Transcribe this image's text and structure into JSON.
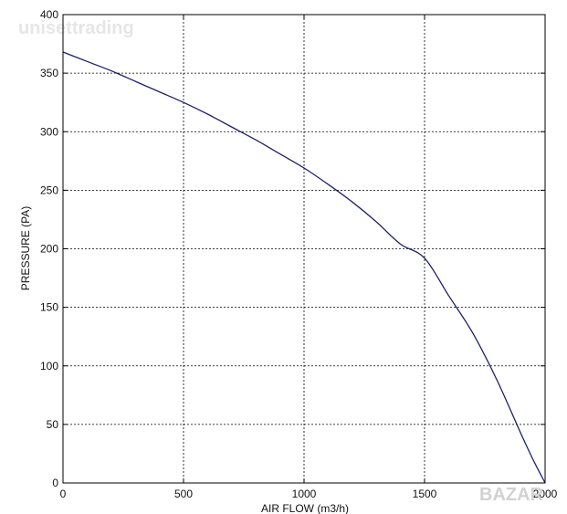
{
  "watermark": {
    "top_text": "unisettrading",
    "bottom_text": "BAZAR"
  },
  "chart_data": {
    "type": "line",
    "title": "",
    "xlabel": "AIR FLOW (m3/h)",
    "ylabel": "PRESSURE (PA)",
    "xlim": [
      0,
      2000
    ],
    "ylim": [
      0,
      400
    ],
    "xticks": [
      0,
      500,
      1000,
      1500,
      2000
    ],
    "yticks": [
      0,
      50,
      100,
      150,
      200,
      250,
      300,
      350,
      400
    ],
    "grid": true,
    "grid_style": "dotted",
    "line_color": "#1f1f6b",
    "series": [
      {
        "x": [
          0,
          100,
          200,
          300,
          400,
          500,
          600,
          700,
          800,
          900,
          1000,
          1100,
          1200,
          1300,
          1400,
          1500,
          1600,
          1700,
          1800,
          1900,
          1950,
          2000
        ],
        "y": [
          368,
          360,
          352,
          343,
          334,
          325,
          315,
          304,
          293,
          281,
          269,
          255,
          240,
          223,
          204,
          192,
          160,
          128,
          88,
          42,
          20,
          0
        ]
      }
    ]
  }
}
